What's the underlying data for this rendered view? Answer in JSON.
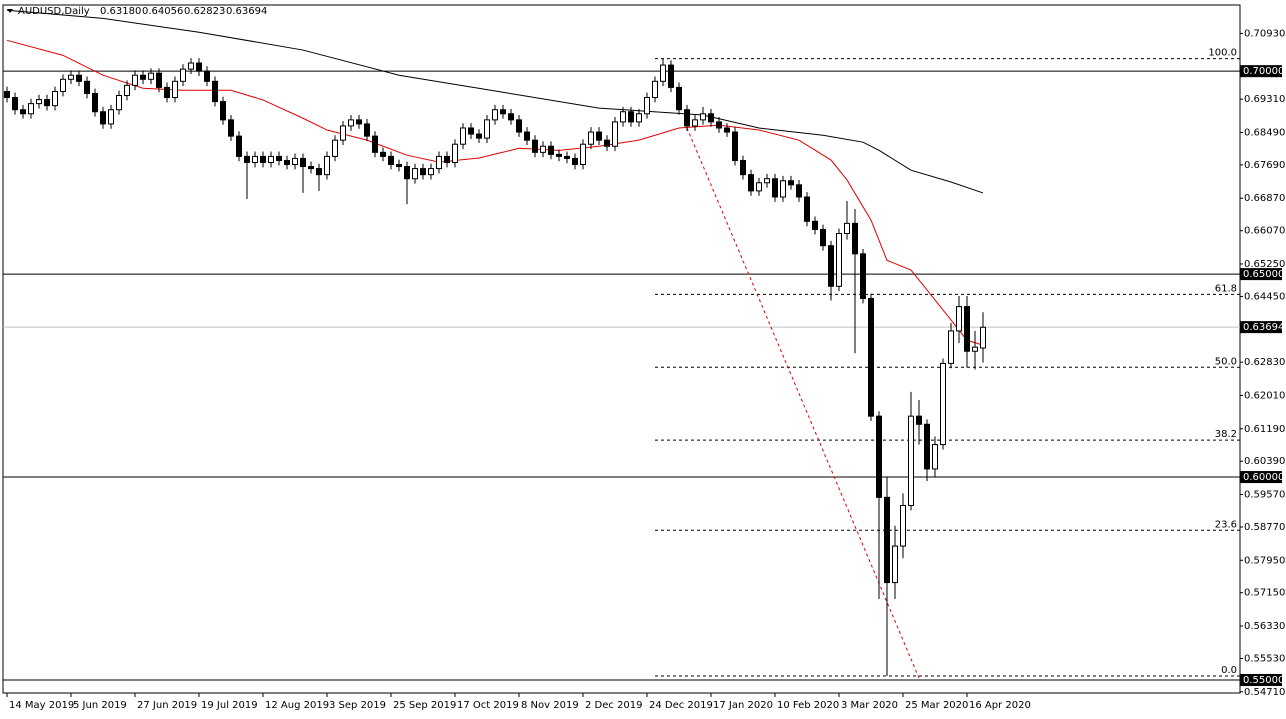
{
  "chart_data": {
    "type": "candlestick",
    "symbol": "AUDUSD,Daily",
    "quote": [
      "0.63180",
      "0.64056",
      "0.62823",
      "0.63694"
    ],
    "ylim": [
      0.5468,
      0.7163
    ],
    "yticks": [
      {
        "value": 0.7093,
        "label": "0.70930"
      },
      {
        "value": 0.6931,
        "label": "0.69310"
      },
      {
        "value": 0.6849,
        "label": "0.68490"
      },
      {
        "value": 0.6769,
        "label": "0.67690"
      },
      {
        "value": 0.6687,
        "label": "0.66870"
      },
      {
        "value": 0.6607,
        "label": "0.66070"
      },
      {
        "value": 0.6525,
        "label": "0.65250"
      },
      {
        "value": 0.6445,
        "label": "0.64450"
      },
      {
        "value": 0.6283,
        "label": "0.62830"
      },
      {
        "value": 0.6201,
        "label": "0.62010"
      },
      {
        "value": 0.6119,
        "label": "0.61190"
      },
      {
        "value": 0.6039,
        "label": "0.60390"
      },
      {
        "value": 0.5957,
        "label": "0.59570"
      },
      {
        "value": 0.5877,
        "label": "0.58770"
      },
      {
        "value": 0.5795,
        "label": "0.57950"
      },
      {
        "value": 0.5715,
        "label": "0.57150"
      },
      {
        "value": 0.5633,
        "label": "0.56330"
      },
      {
        "value": 0.5553,
        "label": "0.55530"
      },
      {
        "value": 0.5471,
        "label": "0.54710"
      }
    ],
    "levels": [
      {
        "value": 0.7,
        "label": "0.70000"
      },
      {
        "value": 0.65,
        "label": "0.65000"
      },
      {
        "value": 0.6,
        "label": "0.60000"
      },
      {
        "value": 0.55,
        "label": "0.55000"
      }
    ],
    "current": {
      "value": 0.63694,
      "label": "0.63694"
    },
    "xticks": [
      {
        "value": 0,
        "label": "14 May 2019"
      },
      {
        "value": 8,
        "label": "5 Jun 2019"
      },
      {
        "value": 16,
        "label": "27 Jun 2019"
      },
      {
        "value": 24,
        "label": "19 Jul 2019"
      },
      {
        "value": 32,
        "label": "12 Aug 2019"
      },
      {
        "value": 40,
        "label": "3 Sep 2019"
      },
      {
        "value": 48,
        "label": "25 Sep 2019"
      },
      {
        "value": 56,
        "label": "17 Oct 2019"
      },
      {
        "value": 64,
        "label": "8 Nov 2019"
      },
      {
        "value": 72,
        "label": "2 Dec 2019"
      },
      {
        "value": 80,
        "label": "24 Dec 2019"
      },
      {
        "value": 88,
        "label": "17 Jan 2020"
      },
      {
        "value": 96,
        "label": "10 Feb 2020"
      },
      {
        "value": 104,
        "label": "3 Mar 2020"
      },
      {
        "value": 112,
        "label": "25 Mar 2020"
      },
      {
        "value": 120,
        "label": "16 Apr 2020"
      }
    ],
    "candles": [
      [
        0.695,
        0.6962,
        0.6923,
        0.6935
      ],
      [
        0.6935,
        0.6947,
        0.6893,
        0.6905
      ],
      [
        0.6905,
        0.6917,
        0.6883,
        0.6895
      ],
      [
        0.6895,
        0.6932,
        0.6883,
        0.692
      ],
      [
        0.692,
        0.6942,
        0.6908,
        0.693
      ],
      [
        0.693,
        0.6942,
        0.6903,
        0.6915
      ],
      [
        0.6915,
        0.6962,
        0.6903,
        0.695
      ],
      [
        0.695,
        0.6992,
        0.6938,
        0.698
      ],
      [
        0.698,
        0.7002,
        0.6968,
        0.699
      ],
      [
        0.699,
        0.7002,
        0.6963,
        0.6975
      ],
      [
        0.6975,
        0.6987,
        0.6933,
        0.6945
      ],
      [
        0.6945,
        0.6957,
        0.6888,
        0.69
      ],
      [
        0.69,
        0.6912,
        0.6858,
        0.687
      ],
      [
        0.687,
        0.6917,
        0.6858,
        0.6905
      ],
      [
        0.6905,
        0.6952,
        0.6893,
        0.694
      ],
      [
        0.694,
        0.6977,
        0.6928,
        0.6965
      ],
      [
        0.6965,
        0.7002,
        0.6953,
        0.699
      ],
      [
        0.699,
        0.7002,
        0.6968,
        0.698
      ],
      [
        0.698,
        0.7007,
        0.6968,
        0.6995
      ],
      [
        0.6995,
        0.7007,
        0.6948,
        0.696
      ],
      [
        0.696,
        0.6972,
        0.6923,
        0.6935
      ],
      [
        0.6935,
        0.6987,
        0.6923,
        0.6975
      ],
      [
        0.6975,
        0.7017,
        0.6963,
        0.7005
      ],
      [
        0.7005,
        0.7032,
        0.6993,
        0.702
      ],
      [
        0.702,
        0.7032,
        0.6988,
        0.7
      ],
      [
        0.7,
        0.7012,
        0.6963,
        0.6975
      ],
      [
        0.6975,
        0.6987,
        0.6913,
        0.6925
      ],
      [
        0.6925,
        0.6937,
        0.6868,
        0.688
      ],
      [
        0.688,
        0.6892,
        0.6828,
        0.684
      ],
      [
        0.684,
        0.6852,
        0.6778,
        0.679
      ],
      [
        0.679,
        0.6802,
        0.6685,
        0.6775
      ],
      [
        0.6775,
        0.6802,
        0.6763,
        0.679
      ],
      [
        0.679,
        0.6802,
        0.6763,
        0.6775
      ],
      [
        0.6775,
        0.6802,
        0.6763,
        0.679
      ],
      [
        0.679,
        0.6802,
        0.6768,
        0.678
      ],
      [
        0.678,
        0.6792,
        0.6758,
        0.677
      ],
      [
        0.677,
        0.6797,
        0.6758,
        0.6785
      ],
      [
        0.6785,
        0.6797,
        0.67,
        0.6765
      ],
      [
        0.6765,
        0.6777,
        0.6748,
        0.676
      ],
      [
        0.676,
        0.6772,
        0.6705,
        0.6745
      ],
      [
        0.6745,
        0.6802,
        0.6733,
        0.679
      ],
      [
        0.679,
        0.6842,
        0.6778,
        0.683
      ],
      [
        0.683,
        0.6877,
        0.6818,
        0.6865
      ],
      [
        0.6865,
        0.6892,
        0.6853,
        0.688
      ],
      [
        0.688,
        0.6892,
        0.6858,
        0.687
      ],
      [
        0.687,
        0.6882,
        0.6828,
        0.684
      ],
      [
        0.684,
        0.6852,
        0.6788,
        0.68
      ],
      [
        0.68,
        0.6812,
        0.6778,
        0.679
      ],
      [
        0.679,
        0.6802,
        0.6758,
        0.677
      ],
      [
        0.677,
        0.6782,
        0.6753,
        0.6765
      ],
      [
        0.6765,
        0.6777,
        0.6672,
        0.6735
      ],
      [
        0.6735,
        0.6772,
        0.6723,
        0.676
      ],
      [
        0.676,
        0.6772,
        0.6733,
        0.6745
      ],
      [
        0.6745,
        0.6772,
        0.6733,
        0.676
      ],
      [
        0.676,
        0.6802,
        0.6748,
        0.679
      ],
      [
        0.679,
        0.6802,
        0.6763,
        0.6775
      ],
      [
        0.6775,
        0.6832,
        0.6763,
        0.682
      ],
      [
        0.682,
        0.6872,
        0.6808,
        0.686
      ],
      [
        0.686,
        0.6872,
        0.6833,
        0.6845
      ],
      [
        0.6845,
        0.6857,
        0.6823,
        0.6835
      ],
      [
        0.6835,
        0.6892,
        0.6823,
        0.688
      ],
      [
        0.688,
        0.6917,
        0.6868,
        0.6905
      ],
      [
        0.6905,
        0.6917,
        0.6883,
        0.6895
      ],
      [
        0.6895,
        0.6907,
        0.6868,
        0.688
      ],
      [
        0.688,
        0.6892,
        0.6838,
        0.685
      ],
      [
        0.685,
        0.6862,
        0.6818,
        0.683
      ],
      [
        0.683,
        0.6842,
        0.6788,
        0.68
      ],
      [
        0.68,
        0.6827,
        0.6788,
        0.6815
      ],
      [
        0.6815,
        0.6827,
        0.6783,
        0.6795
      ],
      [
        0.6795,
        0.6807,
        0.6778,
        0.679
      ],
      [
        0.679,
        0.6802,
        0.6773,
        0.6785
      ],
      [
        0.6785,
        0.6797,
        0.6758,
        0.677
      ],
      [
        0.677,
        0.6832,
        0.6758,
        0.682
      ],
      [
        0.682,
        0.6862,
        0.6808,
        0.685
      ],
      [
        0.685,
        0.6862,
        0.6818,
        0.683
      ],
      [
        0.683,
        0.6842,
        0.6803,
        0.6815
      ],
      [
        0.6815,
        0.6887,
        0.6803,
        0.6875
      ],
      [
        0.6875,
        0.6912,
        0.6863,
        0.69
      ],
      [
        0.69,
        0.6912,
        0.6863,
        0.6875
      ],
      [
        0.6875,
        0.6907,
        0.6863,
        0.6895
      ],
      [
        0.6895,
        0.6947,
        0.6883,
        0.6935
      ],
      [
        0.6935,
        0.6987,
        0.6923,
        0.6975
      ],
      [
        0.6975,
        0.7031,
        0.6963,
        0.7015
      ],
      [
        0.7015,
        0.7027,
        0.6948,
        0.696
      ],
      [
        0.696,
        0.6972,
        0.6893,
        0.6905
      ],
      [
        0.6905,
        0.6917,
        0.6853,
        0.6865
      ],
      [
        0.6865,
        0.6892,
        0.6853,
        0.688
      ],
      [
        0.688,
        0.6912,
        0.6868,
        0.6895
      ],
      [
        0.6895,
        0.6907,
        0.6863,
        0.6875
      ],
      [
        0.6875,
        0.6887,
        0.6848,
        0.686
      ],
      [
        0.686,
        0.6872,
        0.6838,
        0.685
      ],
      [
        0.685,
        0.6862,
        0.6768,
        0.678
      ],
      [
        0.678,
        0.6792,
        0.6733,
        0.6745
      ],
      [
        0.6745,
        0.6757,
        0.6693,
        0.6705
      ],
      [
        0.6705,
        0.6737,
        0.6693,
        0.6725
      ],
      [
        0.6725,
        0.6747,
        0.6713,
        0.6735
      ],
      [
        0.6735,
        0.6747,
        0.6678,
        0.669
      ],
      [
        0.669,
        0.6742,
        0.6678,
        0.673
      ],
      [
        0.673,
        0.6742,
        0.6708,
        0.672
      ],
      [
        0.672,
        0.6732,
        0.6678,
        0.669
      ],
      [
        0.669,
        0.6702,
        0.6618,
        0.663
      ],
      [
        0.663,
        0.6642,
        0.6598,
        0.661
      ],
      [
        0.661,
        0.6622,
        0.6558,
        0.657
      ],
      [
        0.657,
        0.6582,
        0.6435,
        0.647
      ],
      [
        0.647,
        0.6612,
        0.6458,
        0.66
      ],
      [
        0.66,
        0.668,
        0.6585,
        0.6625
      ],
      [
        0.6625,
        0.666,
        0.6305,
        0.655
      ],
      [
        0.655,
        0.6562,
        0.6428,
        0.644
      ],
      [
        0.644,
        0.6452,
        0.6138,
        0.615
      ],
      [
        0.615,
        0.6162,
        0.57,
        0.595
      ],
      [
        0.595,
        0.6,
        0.551,
        0.574
      ],
      [
        0.574,
        0.588,
        0.57,
        0.583
      ],
      [
        0.583,
        0.596,
        0.58,
        0.593
      ],
      [
        0.593,
        0.621,
        0.5918,
        0.615
      ],
      [
        0.615,
        0.619,
        0.608,
        0.613
      ],
      [
        0.613,
        0.6142,
        0.599,
        0.602
      ],
      [
        0.602,
        0.61,
        0.6,
        0.608
      ],
      [
        0.608,
        0.6292,
        0.6068,
        0.628
      ],
      [
        0.628,
        0.638,
        0.6268,
        0.636
      ],
      [
        0.636,
        0.6446,
        0.633,
        0.642
      ],
      [
        0.642,
        0.6446,
        0.627,
        0.631
      ],
      [
        0.631,
        0.636,
        0.6265,
        0.632
      ],
      [
        0.6318,
        0.6406,
        0.6282,
        0.6369
      ]
    ],
    "moving_averages": [
      {
        "color": "#e00000",
        "x": [
          0,
          7,
          12,
          17,
          22,
          28,
          32,
          37,
          40,
          45,
          50,
          54,
          59,
          64,
          69,
          74,
          79,
          84,
          89,
          94,
          99,
          103,
          105,
          108,
          110,
          113,
          115,
          118,
          120,
          122
        ],
        "values": [
          0.7076,
          0.7039,
          0.699,
          0.6958,
          0.6953,
          0.6953,
          0.6929,
          0.6884,
          0.6855,
          0.683,
          0.6793,
          0.6776,
          0.6786,
          0.681,
          0.6805,
          0.6815,
          0.683,
          0.686,
          0.6867,
          0.6855,
          0.683,
          0.6781,
          0.6732,
          0.6633,
          0.6534,
          0.651,
          0.6461,
          0.6387,
          0.6337,
          0.6325
        ]
      },
      {
        "color": "#000000",
        "x": [
          0,
          12,
          24,
          37,
          49,
          62,
          74,
          87,
          94,
          102,
          107,
          109,
          113,
          118,
          122
        ],
        "values": [
          0.715,
          0.713,
          0.7096,
          0.7052,
          0.699,
          0.6948,
          0.6909,
          0.6892,
          0.686,
          0.6842,
          0.6825,
          0.6805,
          0.6756,
          0.6727,
          0.67
        ]
      }
    ],
    "fibonacci": {
      "start": 81,
      "high": 0.7031,
      "low": 0.551,
      "levels": [
        {
          "value": 100,
          "label": "100.0"
        },
        61.8,
        {
          "value": 50,
          "label": "50.0"
        },
        38.2,
        23.6,
        {
          "value": 0,
          "label": "0.0"
        }
      ]
    },
    "trendline": {
      "color": "#e00000",
      "x": [
        85,
        114
      ],
      "values": [
        0.686,
        0.5505
      ]
    }
  }
}
